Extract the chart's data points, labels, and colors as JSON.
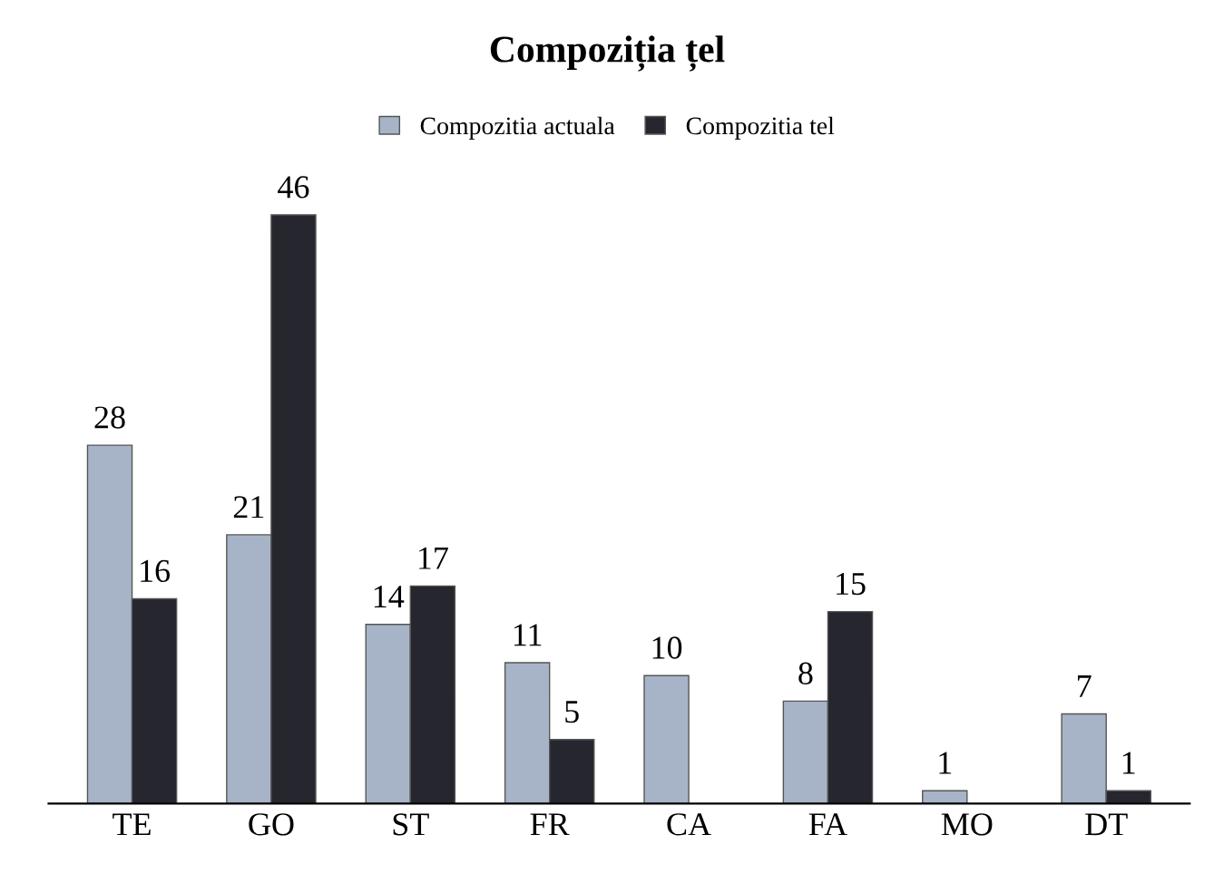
{
  "chart_data": {
    "type": "bar",
    "title": "Compoziția țel",
    "categories": [
      "TE",
      "GO",
      "ST",
      "FR",
      "CA",
      "FA",
      "MO",
      "DT"
    ],
    "series": [
      {
        "name": "Compozitia actuala",
        "color": "#a7b4c8",
        "values": [
          28,
          21,
          14,
          11,
          10,
          8,
          1,
          7
        ]
      },
      {
        "name": "Compozitia tel",
        "color": "#26262e",
        "values": [
          16,
          46,
          17,
          5,
          null,
          15,
          null,
          1
        ]
      }
    ],
    "data_labels": true,
    "legend": "top",
    "grid": false
  }
}
